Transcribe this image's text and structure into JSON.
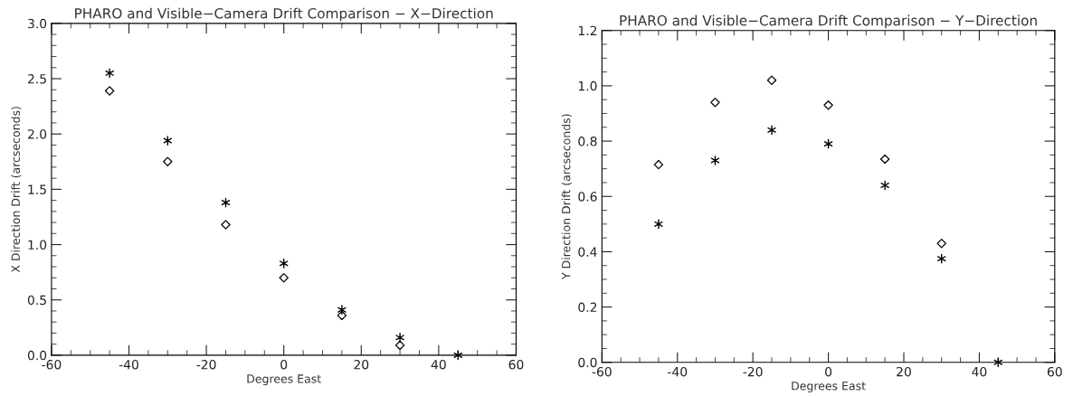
{
  "chart_data": [
    {
      "type": "scatter",
      "title": "PHARO and Visible−Camera Drift Comparison − X−Direction",
      "xlabel": "Degrees East",
      "ylabel": "X Direction Drift (arcseconds)",
      "x": [
        -45,
        -30,
        -15,
        0,
        15,
        30,
        45
      ],
      "series": [
        {
          "color": "#000000",
          "marker": "cross",
          "values": [
            2.55,
            1.94,
            1.38,
            0.83,
            0.41,
            0.16,
            0.0
          ]
        },
        {
          "color": "#000000",
          "marker": "diamond",
          "values": [
            2.39,
            1.75,
            1.18,
            0.7,
            0.36,
            0.09,
            null
          ]
        }
      ],
      "xlim": [
        -60,
        60
      ],
      "xticks": [
        -60,
        -40,
        -20,
        0,
        20,
        40,
        60
      ],
      "ylim": [
        0,
        3
      ],
      "yticks": [
        {
          "value": 0,
          "label": "0.0"
        },
        0.5,
        {
          "value": 1,
          "label": "1.0"
        },
        1.5,
        {
          "value": 2,
          "label": "2.0"
        },
        2.5,
        {
          "value": 3,
          "label": "3.0"
        }
      ],
      "grid": false,
      "legend": false
    },
    {
      "type": "scatter",
      "title": "PHARO and Visible−Camera Drift Comparison − Y−Direction",
      "xlabel": "Degrees East",
      "ylabel": "Y Direction Drift (arcseconds)",
      "x": [
        -45,
        -30,
        -15,
        0,
        15,
        30,
        45
      ],
      "series": [
        {
          "color": "#000000",
          "marker": "cross",
          "values": [
            0.5,
            0.73,
            0.84,
            0.79,
            0.64,
            0.375,
            0.0
          ]
        },
        {
          "color": "#000000",
          "marker": "diamond",
          "values": [
            0.715,
            0.94,
            1.02,
            0.93,
            0.735,
            0.43,
            null
          ]
        }
      ],
      "xlim": [
        -60,
        60
      ],
      "xticks": [
        -60,
        -40,
        -20,
        0,
        20,
        40,
        60
      ],
      "ylim": [
        0,
        1.2
      ],
      "yticks": [
        {
          "value": 0,
          "label": "0.0"
        },
        0.2,
        0.4,
        0.6,
        0.8,
        {
          "value": 1,
          "label": "1.0"
        },
        1.2
      ],
      "grid": false,
      "legend": false
    }
  ]
}
